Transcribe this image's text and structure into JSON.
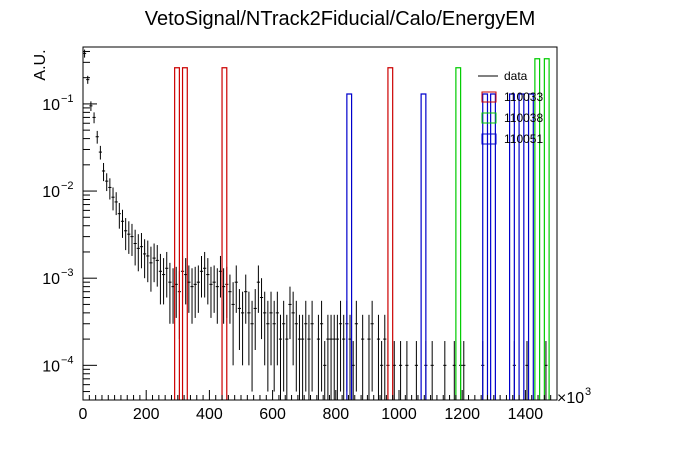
{
  "chart_data": {
    "type": "histogram",
    "title": "VetoSignal/NTrack2Fiducial/Calo/EnergyEM",
    "xlabel": "",
    "ylabel": "A.U.",
    "x_multiplier": "×10",
    "x_multiplier_exp": "3",
    "xlim": [
      0,
      1500
    ],
    "ylim": [
      4e-05,
      0.45
    ],
    "yscale": "log",
    "x_ticks": [
      0,
      200,
      400,
      600,
      800,
      1000,
      1200,
      1400
    ],
    "y_ticks": [
      {
        "value": 0.0001,
        "base": "10",
        "exp": "−4"
      },
      {
        "value": 0.001,
        "base": "10",
        "exp": "−3"
      },
      {
        "value": 0.01,
        "base": "10",
        "exp": "−2"
      },
      {
        "value": 0.1,
        "base": "10",
        "exp": "−1"
      }
    ],
    "legend_position": "top-right",
    "series": [
      {
        "name": "data",
        "style": "points",
        "color": "#000000",
        "bin_width": 10,
        "points": [
          [
            5,
            0.38,
            0.04
          ],
          [
            15,
            0.19,
            0.02
          ],
          [
            25,
            0.095,
            0.012
          ],
          [
            35,
            0.07,
            0.01
          ],
          [
            45,
            0.042,
            0.007
          ],
          [
            55,
            0.028,
            0.005
          ],
          [
            65,
            0.017,
            0.004
          ],
          [
            75,
            0.013,
            0.003
          ],
          [
            85,
            0.011,
            0.003
          ],
          [
            95,
            0.0085,
            0.0025
          ],
          [
            105,
            0.0075,
            0.0022
          ],
          [
            115,
            0.0055,
            0.0018
          ],
          [
            125,
            0.0045,
            0.0016
          ],
          [
            135,
            0.0035,
            0.0014
          ],
          [
            145,
            0.0032,
            0.0013
          ],
          [
            155,
            0.003,
            0.0012
          ],
          [
            165,
            0.0025,
            0.0011
          ],
          [
            175,
            0.0022,
            0.001
          ],
          [
            185,
            0.0023,
            0.001
          ],
          [
            195,
            0.0019,
            0.0009
          ],
          [
            205,
            0.0018,
            0.0009
          ],
          [
            215,
            0.0015,
            0.0008
          ],
          [
            225,
            0.0017,
            0.0008
          ],
          [
            235,
            0.0016,
            0.0008
          ],
          [
            245,
            0.0012,
            0.0007
          ],
          [
            255,
            0.0011,
            0.0006
          ],
          [
            265,
            0.0013,
            0.0007
          ],
          [
            275,
            0.0009,
            0.0006
          ],
          [
            285,
            0.0008,
            0.0005
          ],
          [
            295,
            0.00085,
            0.0005
          ],
          [
            305,
            0.0007,
            0.0005
          ],
          [
            315,
            0.0012,
            0.0006
          ],
          [
            325,
            0.0011,
            0.0006
          ],
          [
            335,
            0.0009,
            0.0005
          ],
          [
            345,
            0.0008,
            0.0005
          ],
          [
            355,
            0.00085,
            0.0005
          ],
          [
            365,
            0.0009,
            0.0005
          ],
          [
            375,
            0.0012,
            0.0006
          ],
          [
            385,
            0.0013,
            0.0007
          ],
          [
            395,
            0.0011,
            0.0006
          ],
          [
            405,
            0.00085,
            0.0005
          ],
          [
            415,
            0.0009,
            0.0005
          ],
          [
            425,
            0.0008,
            0.0005
          ],
          [
            435,
            0.0012,
            0.0006
          ],
          [
            445,
            0.0008,
            0.0005
          ],
          [
            455,
            0.00085,
            0.0005
          ],
          [
            465,
            0.0007,
            0.0004
          ],
          [
            475,
            0.0005,
            0.0004
          ],
          [
            485,
            0.0009,
            0.0005
          ],
          [
            495,
            0.00045,
            0.0003
          ],
          [
            505,
            0.0004,
            0.0003
          ],
          [
            515,
            0.0007,
            0.0004
          ],
          [
            525,
            0.0004,
            0.0003
          ],
          [
            535,
            0.0003,
            0.00025
          ],
          [
            545,
            0.00045,
            0.0003
          ],
          [
            555,
            0.0009,
            0.0005
          ],
          [
            565,
            0.0006,
            0.0004
          ],
          [
            575,
            0.0004,
            0.0003
          ],
          [
            585,
            0.0003,
            0.00025
          ],
          [
            595,
            0.0004,
            0.0003
          ],
          [
            605,
            0.0003,
            0.00025
          ],
          [
            615,
            0.0004,
            0.0003
          ],
          [
            625,
            0.0002,
            0.00018
          ],
          [
            635,
            0.0003,
            0.00025
          ],
          [
            645,
            0.0002,
            0.00018
          ],
          [
            655,
            0.0005,
            0.0003
          ],
          [
            665,
            0.0004,
            0.0003
          ],
          [
            675,
            0.0003,
            0.00025
          ],
          [
            685,
            0.0002,
            0.00018
          ],
          [
            695,
            0.0002,
            0.00018
          ],
          [
            705,
            0.0003,
            0.00025
          ],
          [
            715,
            0.0002,
            0.00018
          ],
          [
            725,
            0.0003,
            0.00025
          ],
          [
            745,
            0.0002,
            0.00018
          ],
          [
            755,
            0.0003,
            0.00025
          ],
          [
            765,
            0.0001,
            9e-05
          ],
          [
            775,
            0.0002,
            0.00018
          ],
          [
            785,
            0.0002,
            0.00018
          ],
          [
            795,
            0.0002,
            0.00018
          ],
          [
            805,
            0.0002,
            0.00018
          ],
          [
            815,
            0.0003,
            0.00025
          ],
          [
            825,
            0.0002,
            0.00018
          ],
          [
            835,
            0.0003,
            0.00025
          ],
          [
            845,
            0.0002,
            0.00018
          ],
          [
            855,
            0.0001,
            9e-05
          ],
          [
            865,
            0.0003,
            0.00025
          ],
          [
            885,
            0.0002,
            0.00018
          ],
          [
            905,
            0.0002,
            0.00018
          ],
          [
            915,
            0.0003,
            0.00025
          ],
          [
            935,
            0.0002,
            0.00018
          ],
          [
            945,
            0.0001,
            9e-05
          ],
          [
            955,
            0.0002,
            0.00018
          ],
          [
            965,
            0.0001,
            9e-05
          ],
          [
            985,
            0.0001,
            9e-05
          ],
          [
            1005,
            0.0001,
            9e-05
          ],
          [
            1025,
            0.0001,
            9e-05
          ],
          [
            1055,
            0.0001,
            9e-05
          ],
          [
            1085,
            0.0001,
            9e-05
          ],
          [
            1105,
            0.0001,
            9e-05
          ],
          [
            1145,
            0.0001,
            9e-05
          ],
          [
            1175,
            0.0001,
            9e-05
          ],
          [
            1195,
            0.0001,
            9e-05
          ],
          [
            1205,
            0.0001,
            9e-05
          ],
          [
            1265,
            0.0001,
            9e-05
          ],
          [
            1365,
            0.0001,
            9e-05
          ],
          [
            1405,
            0.0001,
            9e-05
          ],
          [
            1465,
            0.0001,
            9e-05
          ]
        ]
      },
      {
        "name": "110033",
        "style": "hist",
        "color": "#cc0000",
        "bins": [
          [
            290,
            305,
            0.26
          ],
          [
            315,
            330,
            0.26
          ],
          [
            440,
            455,
            0.26
          ],
          [
            965,
            980,
            0.26
          ]
        ]
      },
      {
        "name": "110038",
        "style": "hist",
        "color": "#00cc00",
        "bins": [
          [
            1180,
            1195,
            0.26
          ],
          [
            1430,
            1445,
            0.33
          ],
          [
            1460,
            1475,
            0.33
          ]
        ]
      },
      {
        "name": "110051",
        "style": "hist",
        "color": "#0000cc",
        "bins": [
          [
            835,
            850,
            0.13
          ],
          [
            1070,
            1085,
            0.13
          ],
          [
            1265,
            1280,
            0.13
          ],
          [
            1290,
            1305,
            0.13
          ],
          [
            1350,
            1365,
            0.13
          ],
          [
            1380,
            1395,
            0.13
          ],
          [
            1410,
            1425,
            0.13
          ]
        ]
      }
    ]
  }
}
